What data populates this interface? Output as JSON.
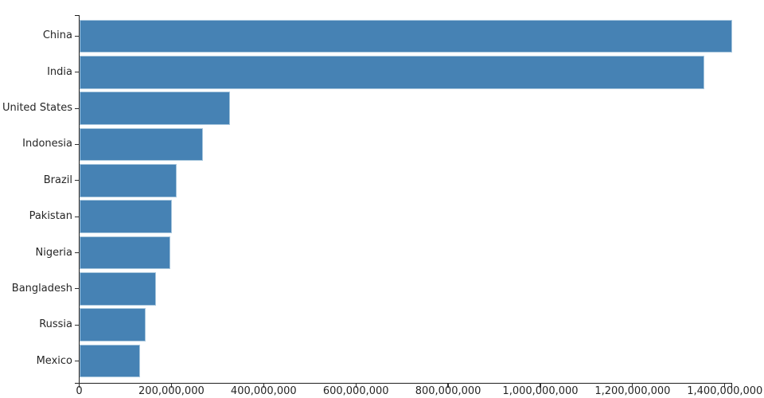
{
  "chart_data": {
    "type": "bar",
    "orientation": "horizontal",
    "title": "",
    "xlabel": "",
    "ylabel": "",
    "grid": false,
    "legend": false,
    "categories": [
      "China",
      "India",
      "United States",
      "Indonesia",
      "Brazil",
      "Pakistan",
      "Nigeria",
      "Bangladesh",
      "Russia",
      "Mexico"
    ],
    "values": [
      1415045928,
      1354051854,
      326766748,
      266794980,
      210867954,
      200813818,
      195875237,
      166368149,
      143964709,
      130759074
    ],
    "xlim": [
      0,
      1415045928
    ],
    "x_ticks": [
      0,
      200000000,
      400000000,
      600000000,
      800000000,
      1000000000,
      1200000000,
      1400000000
    ],
    "x_tick_labels": [
      "0",
      "200,000,000",
      "400,000,000",
      "600,000,000",
      "800,000,000",
      "1,000,000,000",
      "1,200,000,000",
      "1,400,000,000"
    ],
    "colors": {
      "bar_fill": "#4682b4",
      "bar_stroke": "#aac8de",
      "axis_line": "#1f1f1f",
      "tick_mark": "#2e2e2e",
      "label_text": "#262626",
      "background": "#ffffff"
    }
  }
}
